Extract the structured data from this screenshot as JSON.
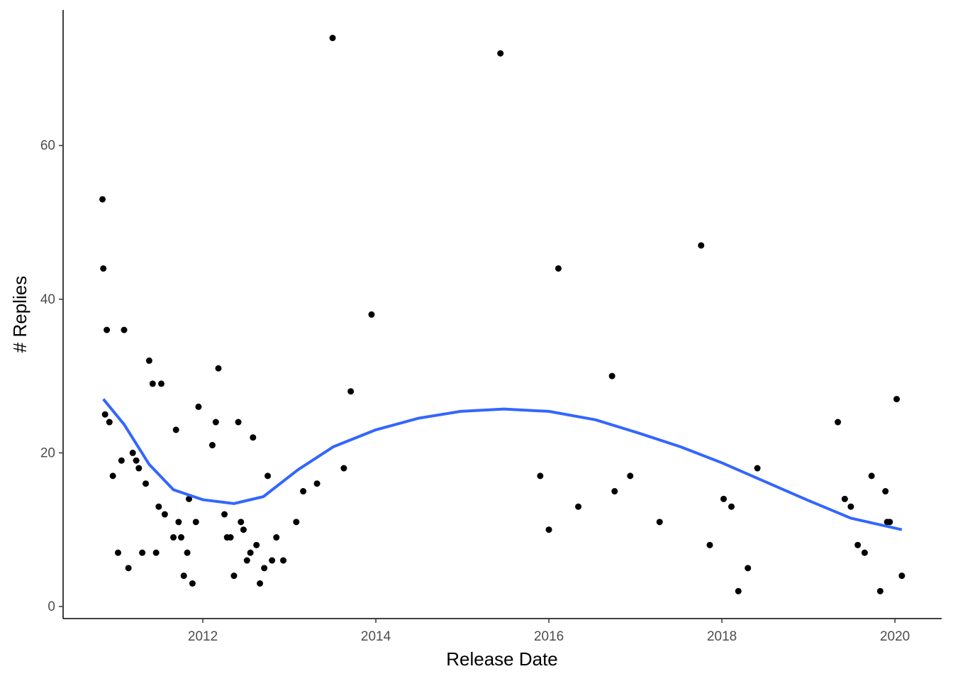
{
  "chart_data": {
    "type": "scatter",
    "xlabel": "Release Date",
    "ylabel": "# Replies",
    "xlim": [
      2010.385,
      2020.54
    ],
    "ylim": [
      -1.57,
      77.65
    ],
    "xticks": [
      2012,
      2014,
      2016,
      2018,
      2020
    ],
    "yticks": [
      0,
      20,
      40,
      60
    ],
    "grid": false,
    "points": {
      "color": "#000000",
      "x": [
        2010.84,
        2010.85,
        2010.87,
        2010.89,
        2010.92,
        2010.96,
        2011.02,
        2011.06,
        2011.09,
        2011.14,
        2011.19,
        2011.23,
        2011.26,
        2011.3,
        2011.34,
        2011.38,
        2011.42,
        2011.46,
        2011.49,
        2011.52,
        2011.56,
        2011.66,
        2011.69,
        2011.72,
        2011.75,
        2011.78,
        2011.82,
        2011.84,
        2011.88,
        2011.92,
        2011.95,
        2012.11,
        2012.15,
        2012.18,
        2012.25,
        2012.28,
        2012.32,
        2012.36,
        2012.41,
        2012.44,
        2012.47,
        2012.51,
        2012.55,
        2012.58,
        2012.62,
        2012.66,
        2012.71,
        2012.75,
        2012.8,
        2012.85,
        2012.93,
        2013.08,
        2013.16,
        2013.32,
        2013.5,
        2013.63,
        2013.71,
        2013.95,
        2015.44,
        2015.9,
        2016.0,
        2016.11,
        2016.34,
        2016.73,
        2016.76,
        2016.94,
        2017.28,
        2017.76,
        2017.86,
        2018.02,
        2018.11,
        2018.19,
        2018.3,
        2018.41,
        2019.34,
        2019.42,
        2019.49,
        2019.57,
        2019.65,
        2019.73,
        2019.83,
        2019.89,
        2019.91,
        2019.94,
        2020.02,
        2020.08
      ],
      "y": [
        53,
        44,
        25,
        36,
        24,
        17,
        7,
        19,
        36,
        5,
        20,
        19,
        18,
        7,
        16,
        32,
        29,
        7,
        13,
        29,
        12,
        9,
        23,
        11,
        9,
        4,
        7,
        14,
        3,
        11,
        26,
        21,
        24,
        31,
        12,
        9,
        9,
        4,
        24,
        11,
        10,
        6,
        7,
        22,
        8,
        3,
        5,
        17,
        6,
        9,
        6,
        11,
        15,
        16,
        74,
        18,
        28,
        38,
        72,
        17,
        10,
        44,
        13,
        30,
        15,
        17,
        11,
        47,
        8,
        14,
        13,
        2,
        5,
        18,
        24,
        14,
        13,
        8,
        7,
        17,
        2,
        15,
        11,
        11,
        27,
        4
      ]
    },
    "trend": {
      "color": "#3366FF",
      "x": [
        2010.85,
        2011.09,
        2011.38,
        2011.66,
        2012.0,
        2012.36,
        2012.7,
        2013.1,
        2013.51,
        2014.0,
        2014.49,
        2014.98,
        2015.48,
        2016.0,
        2016.54,
        2017.03,
        2017.52,
        2018.0,
        2018.51,
        2019.0,
        2019.49,
        2020.08
      ],
      "y": [
        27,
        23.7,
        18.5,
        15.2,
        13.9,
        13.4,
        14.3,
        17.8,
        20.8,
        23.0,
        24.5,
        25.4,
        25.7,
        25.4,
        24.3,
        22.6,
        20.8,
        18.7,
        16.2,
        13.8,
        11.5,
        10.0
      ]
    }
  }
}
